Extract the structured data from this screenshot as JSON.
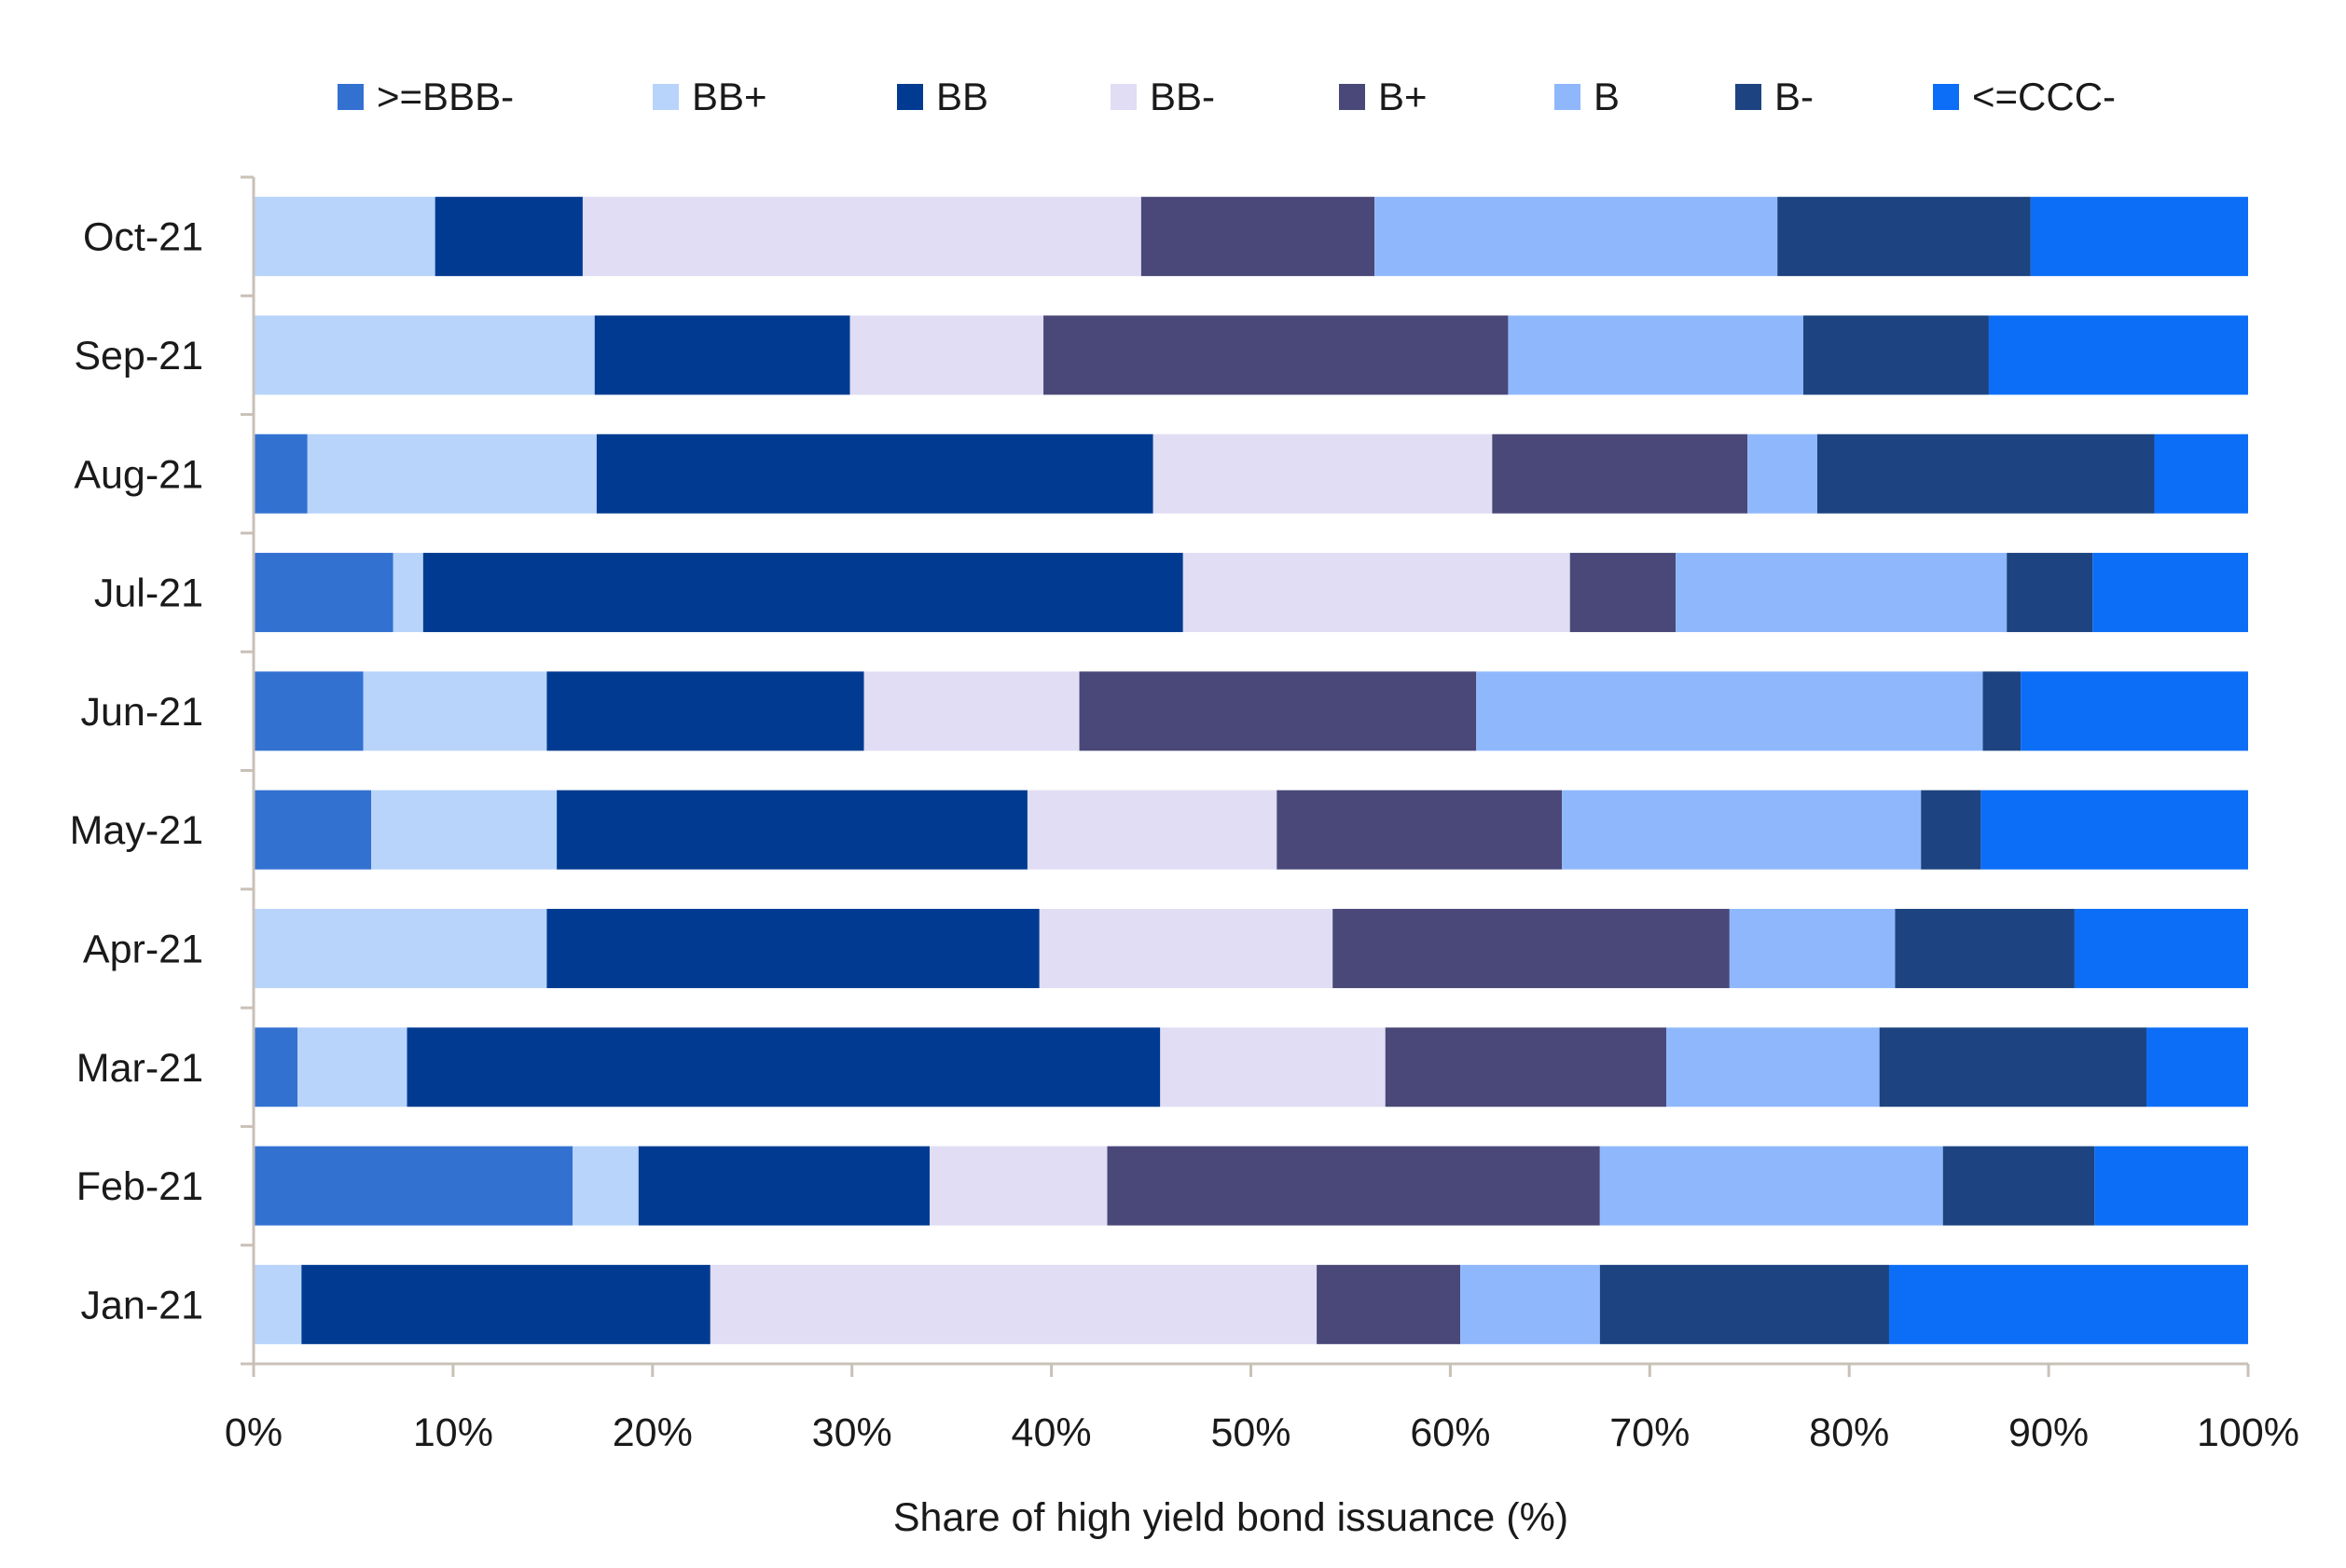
{
  "chart_data": {
    "type": "bar",
    "orientation": "horizontal",
    "stacked": "percent",
    "categories": [
      "Jan-21",
      "Feb-21",
      "Mar-21",
      "Apr-21",
      "May-21",
      "Jun-21",
      "Jul-21",
      "Aug-21",
      "Sep-21",
      "Oct-21"
    ],
    "series": [
      {
        "name": ">=BBB-",
        "color": "#3371D1",
        "values": [
          0.0,
          16.0,
          2.2,
          0.0,
          5.9,
          5.5,
          7.0,
          2.7,
          0.0,
          0.0
        ]
      },
      {
        "name": "BB+",
        "color": "#B8D4FB",
        "values": [
          2.4,
          3.3,
          5.5,
          14.7,
          9.3,
          9.2,
          1.5,
          14.5,
          17.1,
          9.1
        ]
      },
      {
        "name": "BB",
        "color": "#003B91",
        "values": [
          20.5,
          14.6,
          37.8,
          24.7,
          23.6,
          15.9,
          38.1,
          27.9,
          12.8,
          7.4
        ]
      },
      {
        "name": "BB-",
        "color": "#E0DDF4",
        "values": [
          30.4,
          8.9,
          11.3,
          14.7,
          12.5,
          10.8,
          19.4,
          17.0,
          9.7,
          28.0
        ]
      },
      {
        "name": "B+",
        "color": "#4A4878",
        "values": [
          7.2,
          24.7,
          14.1,
          19.9,
          14.3,
          19.9,
          5.3,
          12.8,
          23.3,
          11.7
        ]
      },
      {
        "name": "B",
        "color": "#8FB8FC",
        "values": [
          7.0,
          17.2,
          10.7,
          8.3,
          18.0,
          25.4,
          16.6,
          3.5,
          14.8,
          20.2
        ]
      },
      {
        "name": "B-",
        "color": "#1D4480",
        "values": [
          14.5,
          7.6,
          13.4,
          9.0,
          3.0,
          1.9,
          4.3,
          16.9,
          9.3,
          12.7
        ]
      },
      {
        "name": "<=CCC-",
        "color": "#0C6EF7",
        "values": [
          18.0,
          7.7,
          5.1,
          8.7,
          13.4,
          11.4,
          7.8,
          4.7,
          13.0,
          10.9
        ]
      }
    ],
    "xlabel": "Share of high yield bond issuance (%)",
    "ylabel": "",
    "xlim": [
      0,
      100
    ],
    "xticks": [
      "0%",
      "10%",
      "20%",
      "30%",
      "40%",
      "50%",
      "60%",
      "70%",
      "80%",
      "90%",
      "100%"
    ],
    "legend": "top",
    "grid": false,
    "axis_color": "#C9C0B8"
  }
}
